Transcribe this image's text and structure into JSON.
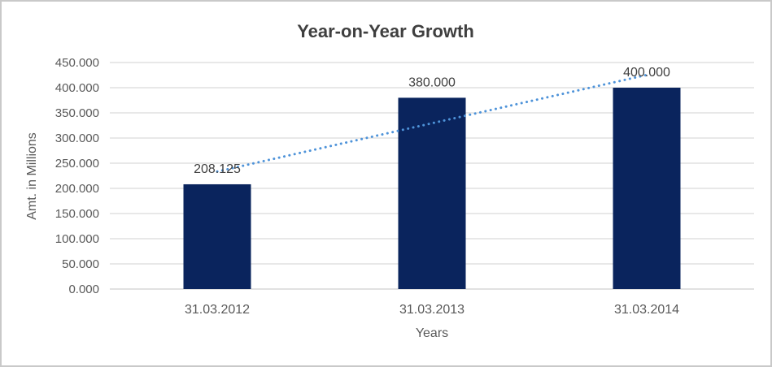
{
  "chart_data": {
    "type": "bar",
    "title": "Year-on-Year Growth",
    "categories": [
      "31.03.2012",
      "31.03.2013",
      "31.03.2014"
    ],
    "values": [
      208.125,
      380.0,
      400.0
    ],
    "data_labels": [
      "208.125",
      "380.000",
      "400.000"
    ],
    "xlabel": "Years",
    "ylabel": "Amt. in Millions",
    "ylim": [
      0,
      450
    ],
    "ytick_step": 50,
    "ytick_labels": [
      "0.000",
      "50.000",
      "100.000",
      "150.000",
      "200.000",
      "250.000",
      "300.000",
      "350.000",
      "400.000",
      "450.000"
    ],
    "grid": true,
    "legend_position": "none",
    "trendline": {
      "type": "linear",
      "style": "dotted"
    },
    "colors": {
      "bar": "#0a245d",
      "trendline": "#4e93d9",
      "gridline": "#d9d9d9",
      "axis_line": "#cfcfcf",
      "tick_text": "#595959",
      "title_text": "#3f3f3f",
      "label_text": "#404040",
      "frame_border": "#c9c9c9",
      "background": "#ffffff"
    }
  }
}
